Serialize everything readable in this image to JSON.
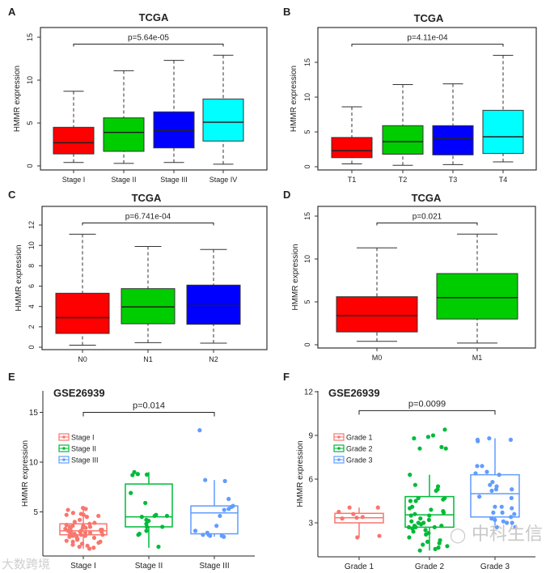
{
  "figure": {
    "watermark_left": "大数跨境",
    "watermark_right": "中科生信",
    "colors": {
      "base": [
        "#ff0000",
        "#00cd00",
        "#0000ff",
        "#00ffff"
      ],
      "gg": [
        "#f8766d",
        "#00ba38",
        "#619cff"
      ]
    }
  },
  "chart_data": [
    {
      "panel": "A",
      "type": "box",
      "style": "base",
      "title": "TCGA",
      "ylabel": "HMMR expression",
      "yticks": [
        0,
        5,
        10,
        15
      ],
      "categories": [
        "Stage I",
        "Stage II",
        "Stage III",
        "Stage IV"
      ],
      "boxes": [
        {
          "min": 0.4,
          "q1": 1.4,
          "median": 2.7,
          "q3": 4.5,
          "max": 8.7
        },
        {
          "min": 0.3,
          "q1": 1.7,
          "median": 3.9,
          "q3": 5.6,
          "max": 11.1
        },
        {
          "min": 0.4,
          "q1": 2.1,
          "median": 4.1,
          "q3": 6.3,
          "max": 12.3
        },
        {
          "min": 0.2,
          "q1": 2.9,
          "median": 5.1,
          "q3": 7.8,
          "max": 12.9
        }
      ],
      "pvalue": "p=5.64e-05",
      "bracket": {
        "from": 0,
        "to": 3,
        "y": 14.2
      }
    },
    {
      "panel": "B",
      "type": "box",
      "style": "base",
      "title": "TCGA",
      "ylabel": "HMMR expression",
      "yticks": [
        0,
        5,
        10,
        15
      ],
      "categories": [
        "T1",
        "T2",
        "T3",
        "T4"
      ],
      "boxes": [
        {
          "min": 0.4,
          "q1": 1.3,
          "median": 2.3,
          "q3": 4.2,
          "max": 8.6
        },
        {
          "min": 0.2,
          "q1": 1.8,
          "median": 3.6,
          "q3": 5.9,
          "max": 11.8
        },
        {
          "min": 0.3,
          "q1": 1.7,
          "median": 4.1,
          "q3": 5.9,
          "max": 11.9
        },
        {
          "min": 0.7,
          "q1": 1.9,
          "median": 4.3,
          "q3": 8.1,
          "max": 16.0
        }
      ],
      "pvalue": "p=4.11e-04",
      "bracket": {
        "from": 0,
        "to": 3,
        "y": 17.6
      }
    },
    {
      "panel": "C",
      "type": "box",
      "style": "base",
      "title": "TCGA",
      "ylabel": "HMMR expression",
      "yticks": [
        0,
        2,
        4,
        6,
        8,
        10,
        12
      ],
      "categories": [
        "N0",
        "N1",
        "N2"
      ],
      "boxes": [
        {
          "min": 0.2,
          "q1": 1.35,
          "median": 2.9,
          "q3": 5.3,
          "max": 11.1
        },
        {
          "min": 0.45,
          "q1": 2.3,
          "median": 3.95,
          "q3": 5.75,
          "max": 9.9
        },
        {
          "min": 0.4,
          "q1": 2.25,
          "median": 4.1,
          "q3": 6.1,
          "max": 9.6
        }
      ],
      "pvalue": "p=6.741e-04",
      "bracket": {
        "from": 0,
        "to": 2,
        "y": 12.2
      }
    },
    {
      "panel": "D",
      "type": "box",
      "style": "base",
      "title": "TCGA",
      "ylabel": "HMMR expression",
      "yticks": [
        0,
        5,
        10,
        15
      ],
      "categories": [
        "M0",
        "M1"
      ],
      "boxes": [
        {
          "min": 0.4,
          "q1": 1.5,
          "median": 3.4,
          "q3": 5.6,
          "max": 11.3
        },
        {
          "min": 0.2,
          "q1": 3.0,
          "median": 5.5,
          "q3": 8.3,
          "max": 12.9
        }
      ],
      "pvalue": "p=0.021",
      "bracket": {
        "from": 0,
        "to": 1,
        "y": 14.2
      }
    },
    {
      "panel": "E",
      "type": "box",
      "style": "gg",
      "title": "GSE26939",
      "ylabel": "HMMR expression",
      "yticks": [
        5,
        10,
        15
      ],
      "categories": [
        "Stage I",
        "Stage II",
        "Stage III"
      ],
      "legend": [
        "Stage I",
        "Stage II",
        "Stage III"
      ],
      "legend_position": "top-left",
      "boxes": [
        {
          "min": 1.3,
          "q1": 2.7,
          "median": 3.1,
          "q3": 3.8,
          "max": 5.4
        },
        {
          "min": 1.4,
          "q1": 3.5,
          "median": 4.5,
          "q3": 7.8,
          "max": 9.0
        },
        {
          "min": 2.5,
          "q1": 2.8,
          "median": 4.9,
          "q3": 5.6,
          "max": 8.2
        }
      ],
      "points": [
        [
          5.4,
          5.3,
          5.2,
          4.9,
          4.8,
          4.7,
          4.7,
          4.6,
          4.5,
          4.2,
          4.0,
          3.9,
          3.8,
          3.7,
          3.6,
          3.6,
          3.5,
          3.5,
          3.4,
          3.4,
          3.3,
          3.3,
          3.2,
          3.2,
          3.1,
          3.1,
          3.0,
          3.0,
          3.0,
          2.9,
          2.9,
          2.8,
          2.8,
          2.7,
          2.7,
          2.6,
          2.6,
          2.5,
          2.5,
          2.4,
          2.3,
          2.2,
          2.1,
          2.0,
          2.0,
          1.9,
          1.8,
          1.7,
          1.6,
          1.5,
          1.4,
          1.3
        ],
        [
          9.0,
          8.8,
          8.75,
          8.7,
          6.9,
          5.9,
          4.7,
          4.6,
          4.6,
          4.5,
          4.2,
          4.1,
          3.8,
          3.5,
          3.5,
          3.1,
          2.8,
          2.7,
          1.5
        ],
        [
          13.2,
          8.2,
          8.1,
          6.3,
          5.6,
          5.5,
          5.3,
          5.2,
          4.6,
          3.6,
          3.1,
          2.9,
          2.7,
          2.7,
          2.6,
          2.6,
          2.5
        ]
      ],
      "pvalue": "p=0.014",
      "bracket": {
        "from": 0,
        "to": 2,
        "y": 15.0
      }
    },
    {
      "panel": "F",
      "type": "box",
      "style": "gg",
      "title": "GSE26939",
      "ylabel": "HMMR expression",
      "yticks": [
        3,
        6,
        9,
        12
      ],
      "categories": [
        "Grade 1",
        "Grade 2",
        "Grade 3"
      ],
      "legend": [
        "Grade 1",
        "Grade 2",
        "Grade 3"
      ],
      "legend_position": "top-left",
      "boxes": [
        {
          "min": 2.0,
          "q1": 3.0,
          "median": 3.35,
          "q3": 3.65,
          "max": 4.05
        },
        {
          "min": 1.1,
          "q1": 2.7,
          "median": 3.55,
          "q3": 4.8,
          "max": 6.3
        },
        {
          "min": 2.7,
          "q1": 3.4,
          "median": 5.0,
          "q3": 6.3,
          "max": 8.8
        }
      ],
      "points": [
        [
          4.05,
          4.05,
          3.75,
          3.6,
          3.4,
          3.35,
          3.3,
          2.1,
          2.0
        ],
        [
          9.4,
          9.0,
          8.9,
          8.8,
          8.2,
          8.1,
          8.1,
          6.3,
          5.6,
          5.5,
          5.3,
          5.2,
          4.7,
          4.7,
          4.6,
          4.5,
          4.5,
          4.1,
          4.0,
          3.9,
          3.8,
          3.7,
          3.6,
          3.5,
          3.5,
          3.3,
          3.2,
          3.1,
          3.0,
          3.0,
          2.9,
          2.8,
          2.8,
          2.7,
          2.7,
          2.7,
          2.6,
          2.5,
          2.4,
          2.3,
          2.2,
          2.0,
          1.8,
          1.7,
          1.6,
          1.5,
          1.4,
          1.3,
          1.2,
          1.1
        ],
        [
          8.8,
          8.7,
          8.7,
          8.6,
          6.9,
          6.9,
          6.5,
          6.4,
          6.3,
          5.8,
          5.6,
          5.5,
          5.3,
          5.3,
          5.2,
          4.8,
          4.7,
          4.1,
          4.1,
          4.0,
          3.7,
          3.7,
          3.6,
          3.4,
          3.3,
          3.2,
          3.1,
          3.0,
          3.0,
          2.7,
          2.7
        ]
      ],
      "pvalue": "p=0.0099",
      "bracket": {
        "from": 0,
        "to": 2,
        "y": 10.7
      }
    }
  ]
}
